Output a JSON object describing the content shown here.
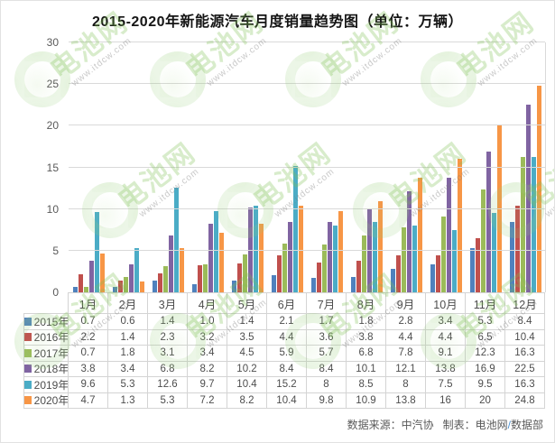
{
  "title": "2015-2020年新能源汽车月度销量趋势图（单位：万辆）",
  "watermark": {
    "brand": "电池网",
    "url": "www.itdcw.com"
  },
  "footer": {
    "source": "数据来源：中汽协",
    "maker": "制表：电池网",
    "slash": "/",
    "dept": "数据部"
  },
  "chart_data": {
    "type": "bar",
    "title": "2015-2020年新能源汽车月度销量趋势图（单位：万辆）",
    "unit": "万辆",
    "categories": [
      "1月",
      "2月",
      "3月",
      "4月",
      "5月",
      "6月",
      "7月",
      "8月",
      "9月",
      "10月",
      "11月",
      "12月"
    ],
    "series": [
      {
        "name": "2015年",
        "color": "#4F81BD",
        "values": [
          0.7,
          0.6,
          1.4,
          1.0,
          1.4,
          2.1,
          1.7,
          1.8,
          2.8,
          3.4,
          5.3,
          8.4
        ],
        "display": [
          "0.7",
          "0.6",
          "1.4",
          "1.0",
          "1.4",
          "2.1",
          "1.7",
          "1.8",
          "2.8",
          "3.4",
          "5.3",
          "8.4"
        ]
      },
      {
        "name": "2016年",
        "color": "#C0504D",
        "values": [
          2.2,
          1.4,
          2.3,
          3.2,
          3.5,
          4.4,
          3.6,
          3.8,
          4.4,
          4.4,
          6.5,
          10.4
        ],
        "display": [
          "2.2",
          "1.4",
          "2.3",
          "3.2",
          "3.5",
          "4.4",
          "3.6",
          "3.8",
          "4.4",
          "4.4",
          "6.5",
          "10.4"
        ]
      },
      {
        "name": "2017年",
        "color": "#9BBB59",
        "values": [
          0.7,
          1.8,
          3.1,
          3.4,
          4.5,
          5.9,
          5.7,
          6.8,
          7.8,
          9.1,
          12.3,
          16.3
        ],
        "display": [
          "0.7",
          "1.8",
          "3.1",
          "3.4",
          "4.5",
          "5.9",
          "5.7",
          "6.8",
          "7.8",
          "9.1",
          "12.3",
          "16.3"
        ]
      },
      {
        "name": "2018年",
        "color": "#8064A2",
        "values": [
          3.8,
          3.4,
          6.8,
          8.2,
          10.2,
          8.4,
          8.4,
          10.1,
          12.1,
          13.8,
          16.9,
          22.5
        ],
        "display": [
          "3.8",
          "3.4",
          "6.8",
          "8.2",
          "10.2",
          "8.4",
          "8.4",
          "10.1",
          "12.1",
          "13.8",
          "16.9",
          "22.5"
        ]
      },
      {
        "name": "2019年",
        "color": "#4BACC6",
        "values": [
          9.6,
          5.3,
          12.6,
          9.7,
          10.4,
          15.2,
          8,
          8.5,
          8,
          7.5,
          9.5,
          16.3
        ],
        "display": [
          "9.6",
          "5.3",
          "12.6",
          "9.7",
          "10.4",
          "15.2",
          "8",
          "8.5",
          "8",
          "7.5",
          "9.5",
          "16.3"
        ]
      },
      {
        "name": "2020年",
        "color": "#F79646",
        "values": [
          4.7,
          1.3,
          5.3,
          7.2,
          8.2,
          10.4,
          9.8,
          10.9,
          13.8,
          16,
          20,
          24.8
        ],
        "display": [
          "4.7",
          "1.3",
          "5.3",
          "7.2",
          "8.2",
          "10.4",
          "9.8",
          "10.9",
          "13.8",
          "16",
          "20",
          "24.8"
        ]
      }
    ],
    "ylim": [
      0,
      30
    ],
    "yticks": [
      0,
      5,
      10,
      15,
      20,
      25,
      30
    ],
    "grid": true,
    "legend_position": "table-left",
    "source_note": "数据来源：中汽协 制表：电池网/数据部"
  }
}
